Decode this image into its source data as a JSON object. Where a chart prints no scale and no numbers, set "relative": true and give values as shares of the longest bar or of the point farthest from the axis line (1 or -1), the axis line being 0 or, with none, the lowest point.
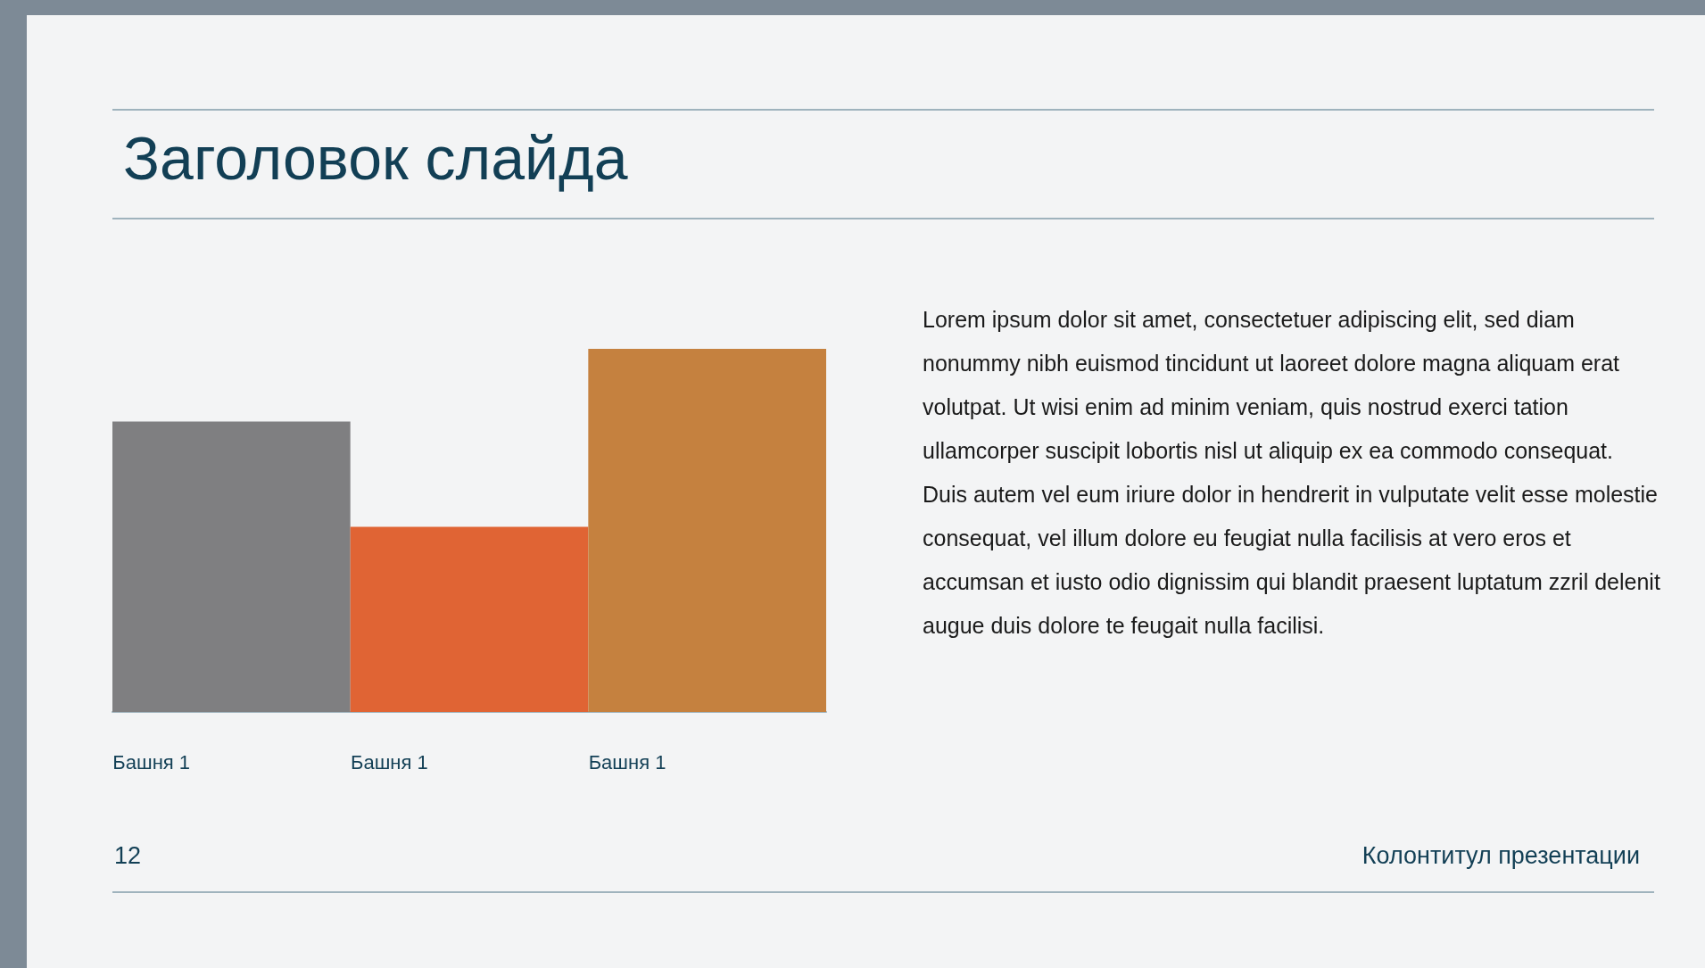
{
  "chart_data": {
    "type": "bar",
    "title": "Заголовок слайда",
    "relative": true,
    "categories": [
      "Башня 1",
      "Башня 1",
      "Башня 1"
    ],
    "values": [
      0.8,
      0.51,
      1
    ],
    "colors": [
      "#7f7f81",
      "#e06434",
      "#c5813f"
    ],
    "annotations": [
      "Lorem ipsum dolor sit amet, consectetuer adipiscing elit, sed diam nonummy nibh euismod tincidunt ut laoreet dolore magna aliquam erat volutpat. Ut wisi enim ad minim veniam, quis nostrud exerci tation ullamcorper suscipit lobortis nisl ut aliquip ex ea commodo consequat. Duis autem vel eum iriure dolor in hendrerit in vulputate velit esse molestie consequat, vel illum dolore eu feugiat nulla facilisis at vero eros et accumsan et iusto odio dignissim qui blandit praesent luptatum zzril delenit augue duis dolore te feugait nulla facilisi.",
      "12",
      "Колонтитул презентации"
    ]
  }
}
